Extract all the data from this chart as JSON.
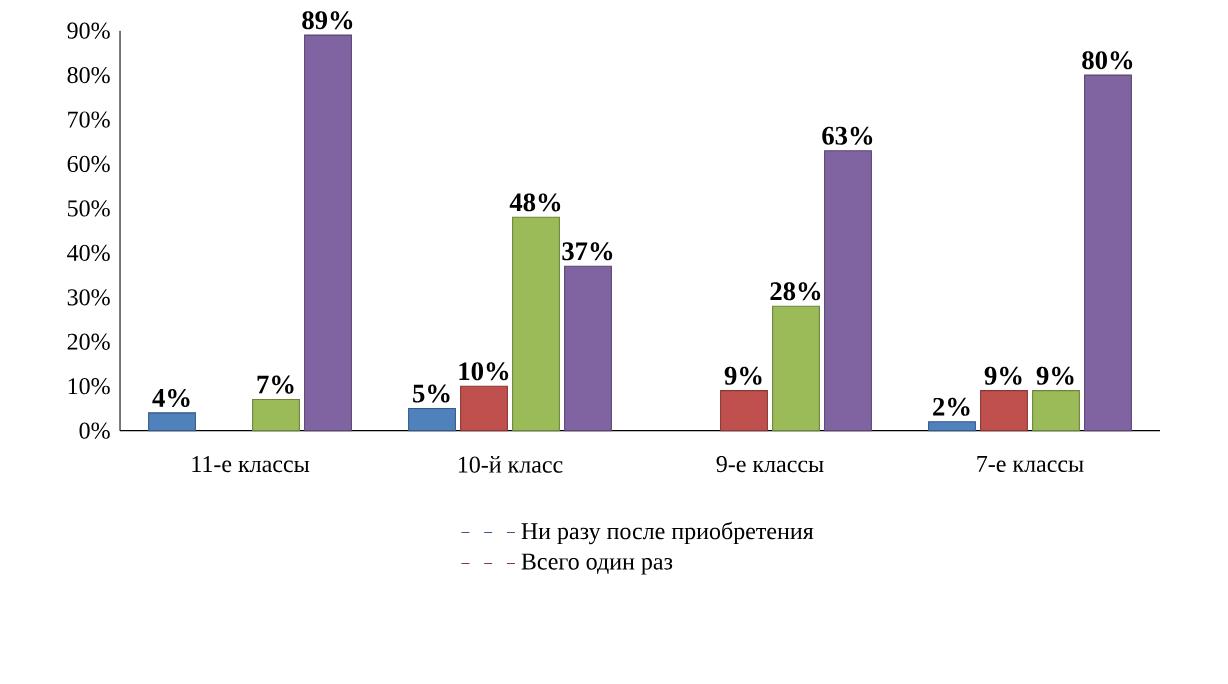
{
  "chart_data": {
    "type": "bar",
    "categories": [
      "11-е классы",
      "10-й класс",
      "9-е классы",
      "7-е классы"
    ],
    "series": [
      {
        "name": "Ни разу после приобретения",
        "color": "#4f81bd",
        "values": [
          4,
          5,
          null,
          2
        ],
        "value_labels": [
          "4%",
          "5%",
          null,
          "2%"
        ]
      },
      {
        "name": "Всего один раз",
        "color": "#c0504d",
        "values": [
          null,
          10,
          9,
          9
        ],
        "value_labels": [
          null,
          "10%",
          "9%",
          "9%"
        ]
      },
      {
        "color": "#9bbb59",
        "values": [
          7,
          48,
          28,
          9
        ],
        "value_labels": [
          "7%",
          "48%",
          "28%",
          "9%"
        ]
      },
      {
        "color": "#8064a2",
        "values": [
          89,
          37,
          63,
          80
        ],
        "value_labels": [
          "89%",
          "37%",
          "63%",
          "80%"
        ]
      }
    ],
    "ylim": [
      0,
      90
    ],
    "yticks": [
      {
        "value": 0,
        "label": "0%"
      },
      {
        "value": 10,
        "label": "10%"
      },
      {
        "value": 20,
        "label": "20%"
      },
      {
        "value": 30,
        "label": "30%"
      },
      {
        "value": 40,
        "label": "40%"
      },
      {
        "value": 50,
        "label": "50%"
      },
      {
        "value": 60,
        "label": "60%"
      },
      {
        "value": 70,
        "label": "70%"
      },
      {
        "value": 80,
        "label": "80%"
      },
      {
        "value": 90,
        "label": "90%"
      }
    ],
    "legend": "bottom"
  }
}
